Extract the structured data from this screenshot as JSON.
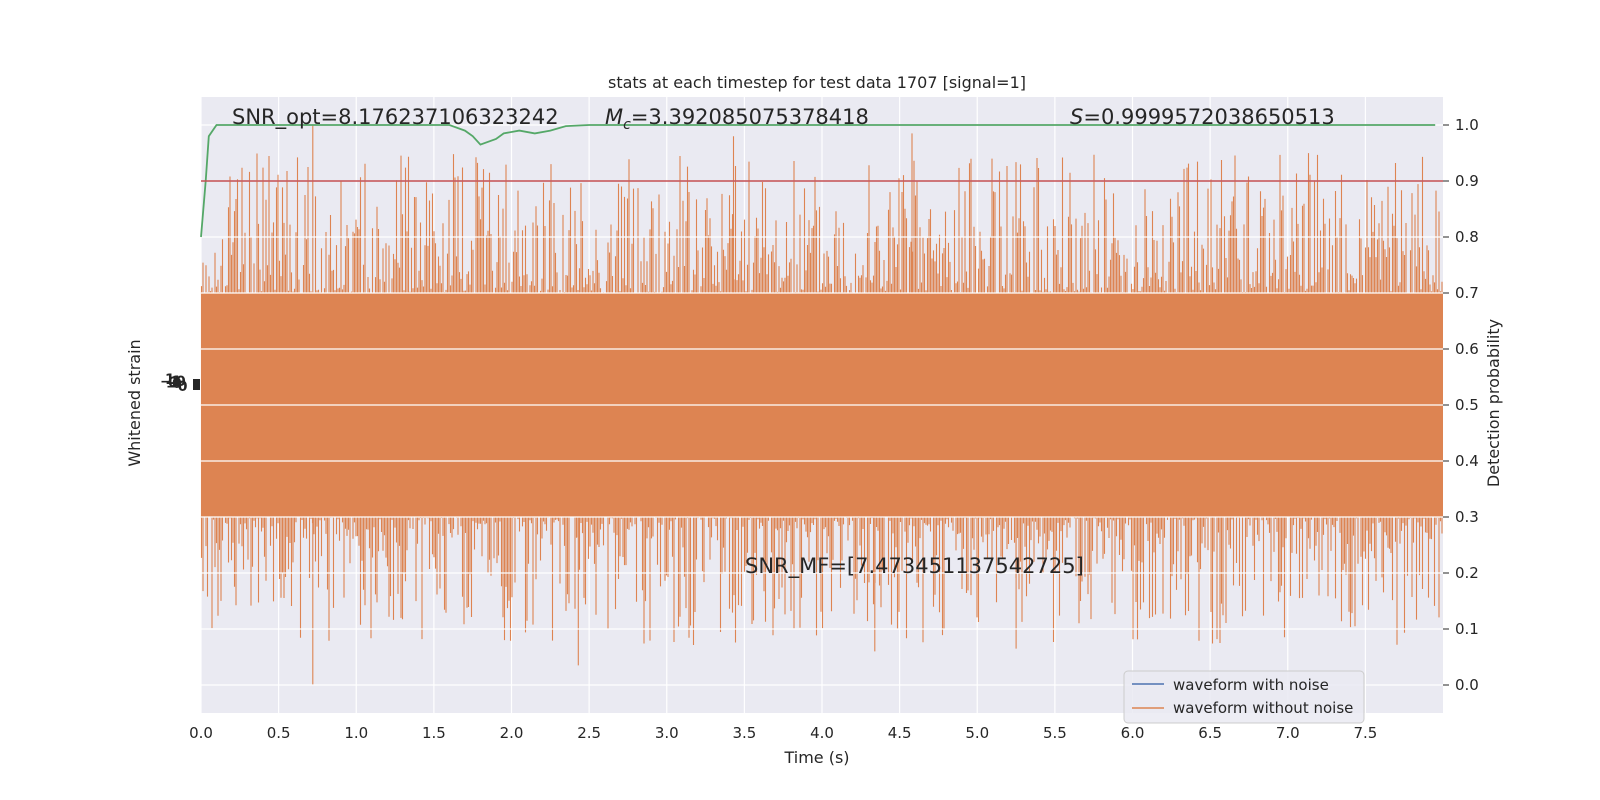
{
  "chart_data": {
    "type": "line",
    "title": "stats at each timestep for test data 1707 [signal=1]",
    "xlabel": "Time (s)",
    "ylabel_left": "Whitened strain",
    "ylabel_right": "Detection probability",
    "xlim": [
      0.0,
      8.0
    ],
    "ylim_right": [
      -0.05,
      1.05
    ],
    "x_ticks": [
      0.0,
      0.5,
      1.0,
      1.5,
      2.0,
      2.5,
      3.0,
      3.5,
      4.0,
      4.5,
      5.0,
      5.5,
      6.0,
      6.5,
      7.0,
      7.5
    ],
    "x_tick_labels": [
      "0.0",
      "0.5",
      "1.0",
      "1.5",
      "2.0",
      "2.5",
      "3.0",
      "3.5",
      "4.0",
      "4.5",
      "5.0",
      "5.5",
      "6.0",
      "6.5",
      "7.0",
      "7.5"
    ],
    "y_right_ticks": [
      0.0,
      0.1,
      0.2,
      0.3,
      0.4,
      0.5,
      0.6,
      0.7,
      0.8,
      0.9,
      1.0
    ],
    "y_right_tick_labels": [
      "0.0",
      "0.1",
      "0.2",
      "0.3",
      "0.4",
      "0.5",
      "0.6",
      "0.7",
      "0.8",
      "0.9",
      "1.0"
    ],
    "grid": true,
    "legend_placement": "lower-right",
    "annotations": {
      "snr_opt": "SNR_opt=8.176237106323242",
      "mc_symbol": "M",
      "mc_subscript": "c",
      "mc_value": "=3.392085075378418",
      "s_symbol": "S",
      "s_value": "=0.9999572038650513",
      "snr_mf": "SNR_MF=[7.473451137542725]"
    },
    "series": [
      {
        "name": "waveform with noise",
        "color": "#4c72b0"
      },
      {
        "name": "waveform without noise",
        "color": "#dd8452",
        "band_core": [
          0.3,
          0.7
        ],
        "extreme_max": 1.0,
        "extreme_min": 0.0
      },
      {
        "color": "#55a868",
        "points": [
          [
            0.0,
            0.8
          ],
          [
            0.03,
            0.9
          ],
          [
            0.05,
            0.98
          ],
          [
            0.1,
            1.0
          ],
          [
            1.6,
            1.0
          ],
          [
            1.7,
            0.99
          ],
          [
            1.75,
            0.98
          ],
          [
            1.8,
            0.965
          ],
          [
            1.9,
            0.975
          ],
          [
            1.95,
            0.985
          ],
          [
            2.05,
            0.99
          ],
          [
            2.15,
            0.985
          ],
          [
            2.25,
            0.99
          ],
          [
            2.35,
            0.998
          ],
          [
            2.5,
            1.0
          ],
          [
            7.95,
            1.0
          ]
        ]
      },
      {
        "color": "#c44e52",
        "constant": 0.9
      }
    ]
  }
}
